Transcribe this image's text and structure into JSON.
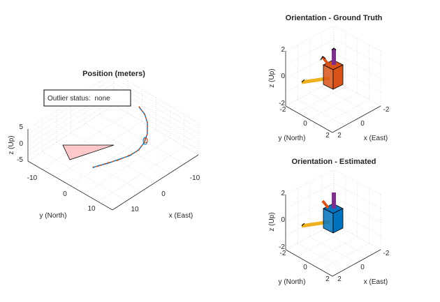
{
  "figure": {
    "status_box": {
      "label": "Outlier status:",
      "value": "none"
    }
  },
  "colors": {
    "accent": "#d95319",
    "brand": "#0072bd",
    "x_axis_arrow": "#edb120",
    "z_axis_arrow": "#7e2f8e",
    "fov_fill": "#ffc9c9"
  },
  "chart_data": [
    {
      "type": "scatter",
      "subtype": "3d-trajectory",
      "title": "Position (meters)",
      "xlabel": "x (East)",
      "ylabel": "y (North)",
      "zlabel": "z (Up)",
      "x_ticks": [
        "-10",
        "0",
        "10"
      ],
      "y_ticks": [
        "-10",
        "0",
        "10"
      ],
      "z_ticks": [
        "5",
        "0",
        "-5"
      ],
      "xlim": [
        -15,
        15
      ],
      "ylim": [
        -15,
        15
      ],
      "zlim": [
        -5,
        5
      ],
      "grid": true,
      "series": [
        {
          "color": "#0072bd",
          "points": [
            [
              -14,
              -5,
              0
            ],
            [
              -13,
              -2,
              0
            ],
            [
              -11,
              1,
              0
            ],
            [
              -8,
              4,
              0
            ],
            [
              -5,
              6,
              0
            ],
            [
              -2,
              7,
              0
            ],
            [
              1,
              7,
              0
            ],
            [
              4,
              6,
              0
            ],
            [
              7,
              5,
              0
            ],
            [
              9,
              4,
              0
            ],
            [
              10.5,
              3.5,
              0
            ]
          ]
        },
        {
          "color": "#d95319",
          "points": [
            [
              -14,
              -5,
              0.2
            ],
            [
              -13,
              -2,
              -0.2
            ],
            [
              -11,
              1,
              0.2
            ],
            [
              -8,
              4,
              -0.2
            ],
            [
              -5,
              6,
              0.2
            ],
            [
              -2,
              7,
              -0.2
            ],
            [
              1,
              7,
              0.2
            ],
            [
              4,
              6,
              -0.2
            ],
            [
              7,
              5,
              0.2
            ],
            [
              9,
              4,
              -0.2
            ],
            [
              10.5,
              3.5,
              0.2
            ]
          ]
        }
      ]
    },
    {
      "type": "scatter",
      "subtype": "3d-orientation",
      "title": "Orientation - Ground Truth",
      "xlabel": "x (East)",
      "ylabel": "y (North)",
      "zlabel": "z (Up)",
      "x_ticks": [
        "2",
        "0",
        "-2"
      ],
      "y_ticks": [
        "-2",
        "0",
        "2"
      ],
      "z_ticks": [
        "2",
        "0",
        "-2"
      ],
      "xlim": [
        -2,
        2
      ],
      "ylim": [
        -2,
        2
      ],
      "zlim": [
        -2,
        2
      ],
      "grid": true,
      "body_color": "#d95319"
    },
    {
      "type": "scatter",
      "subtype": "3d-orientation",
      "title": "Orientation - Estimated",
      "xlabel": "x (East)",
      "ylabel": "y (North)",
      "zlabel": "z (Up)",
      "x_ticks": [
        "2",
        "0",
        "-2"
      ],
      "y_ticks": [
        "-2",
        "0",
        "2"
      ],
      "z_ticks": [
        "2",
        "0",
        "-2"
      ],
      "xlim": [
        -2,
        2
      ],
      "ylim": [
        -2,
        2
      ],
      "zlim": [
        -2,
        2
      ],
      "grid": true,
      "body_color": "#0072bd"
    }
  ]
}
